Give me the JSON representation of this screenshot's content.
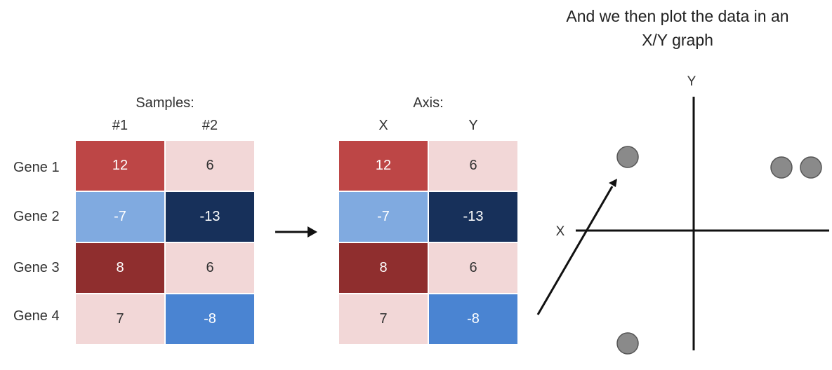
{
  "colors": {
    "dark_red": "#8f2e2e",
    "red": "#bd4646",
    "light_pink": "#f2d7d7",
    "light_blue": "#80aae0",
    "navy": "#17305a",
    "mid_blue": "#4a84d2",
    "point_fill": "#8a8a8a"
  },
  "left_table": {
    "header": "Samples:",
    "columns": [
      "#1",
      "#2"
    ],
    "rows": [
      {
        "label": "Gene 1",
        "values": [
          "12",
          "6"
        ]
      },
      {
        "label": "Gene 2",
        "values": [
          "-7",
          "-13"
        ]
      },
      {
        "label": "Gene 3",
        "values": [
          "8",
          "6"
        ]
      },
      {
        "label": "Gene 4",
        "values": [
          "7",
          "-8"
        ]
      }
    ]
  },
  "right_table": {
    "header": "Axis:",
    "columns": [
      "X",
      "Y"
    ],
    "rows": [
      {
        "values": [
          "12",
          "6"
        ]
      },
      {
        "values": [
          "-7",
          "-13"
        ]
      },
      {
        "values": [
          "8",
          "6"
        ]
      },
      {
        "values": [
          "7",
          "-8"
        ]
      }
    ]
  },
  "cell_styles": [
    [
      {
        "bg": "#bd4646",
        "fg": "#ffffff"
      },
      {
        "bg": "#f2d7d7",
        "fg": "#333333"
      }
    ],
    [
      {
        "bg": "#80aae0",
        "fg": "#ffffff"
      },
      {
        "bg": "#17305a",
        "fg": "#ffffff"
      }
    ],
    [
      {
        "bg": "#8f2e2e",
        "fg": "#ffffff"
      },
      {
        "bg": "#f2d7d7",
        "fg": "#333333"
      }
    ],
    [
      {
        "bg": "#f2d7d7",
        "fg": "#333333"
      },
      {
        "bg": "#4a84d2",
        "fg": "#ffffff"
      }
    ]
  ],
  "graph": {
    "title_line1": "And we then plot the data in an",
    "title_line2": "X/Y graph",
    "x_label": "X",
    "y_label": "Y"
  }
}
